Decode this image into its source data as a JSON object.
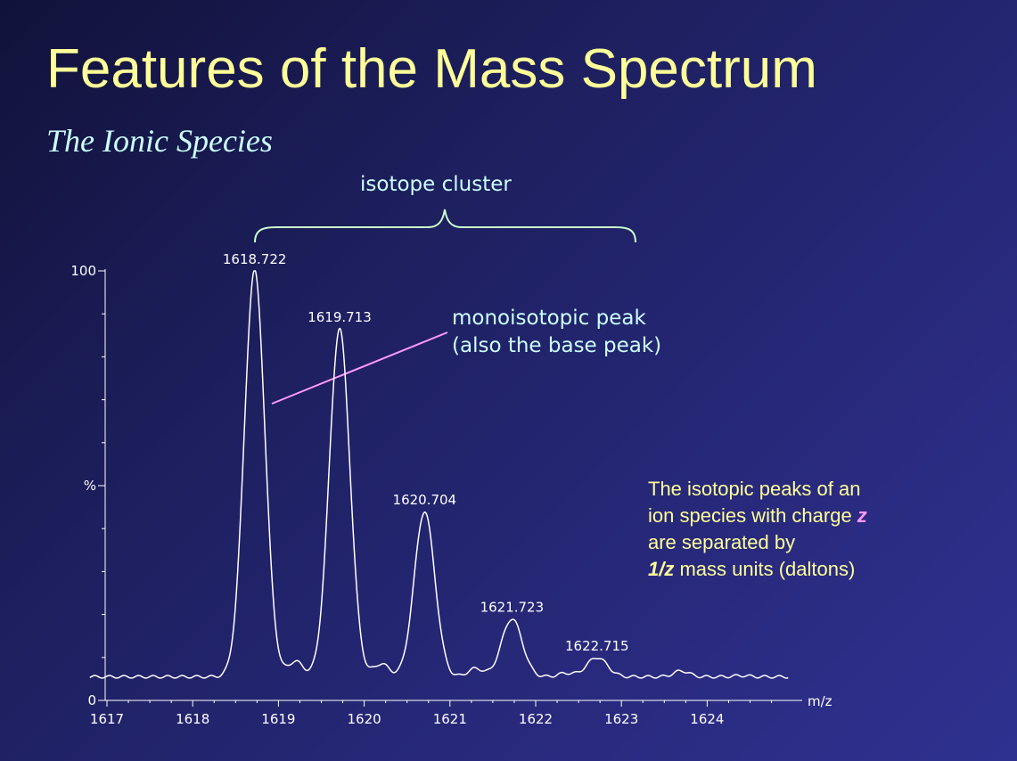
{
  "slide": {
    "title": "Features of the Mass Spectrum",
    "subtitle": "The Ionic Species",
    "cluster_label": "isotope cluster",
    "mono_label_line1": "monoisotopic  peak",
    "mono_label_line2": "(also the base peak)",
    "note": {
      "line1": "The isotopic peaks of an",
      "line2_pre": "ion species with charge ",
      "line2_z": "z",
      "line3": "are separated by",
      "line4_bold": "1/z",
      "line4_rest": " mass units (daltons)"
    }
  },
  "colors": {
    "title": "#ffff99",
    "subtitle": "#ccffff",
    "spectrum": "#ffffff",
    "pointer": "#ff99ff",
    "brace": "#ccffcc"
  },
  "chart_data": {
    "type": "line",
    "xlabel": "m/z",
    "ylabel": "%",
    "xlim": [
      1616.8,
      1624.95
    ],
    "ylim": [
      0,
      100
    ],
    "x_ticks": [
      "1617",
      "1618",
      "1619",
      "1620",
      "1621",
      "1622",
      "1623",
      "1624"
    ],
    "y_tick_labels": [
      {
        "value": 100,
        "label": "100"
      },
      {
        "value": 50,
        "label": "%"
      },
      {
        "value": 0,
        "label": "0"
      }
    ],
    "baseline": 5.5,
    "peaks": [
      {
        "mz": 1618.722,
        "label": "1618.722",
        "intensity": 100
      },
      {
        "mz": 1619.713,
        "label": "1619.713",
        "intensity": 86.5
      },
      {
        "mz": 1620.704,
        "label": "1620.704",
        "intensity": 44
      },
      {
        "mz": 1621.723,
        "label": "1621.723",
        "intensity": 19
      },
      {
        "mz": 1622.715,
        "label": "1622.715",
        "intensity": 10
      }
    ],
    "minor_peaks": [
      {
        "mz": 1619.2,
        "intensity": 12
      },
      {
        "mz": 1620.2,
        "intensity": 11
      },
      {
        "mz": 1621.3,
        "intensity": 9
      },
      {
        "mz": 1622.35,
        "intensity": 7
      },
      {
        "mz": 1623.7,
        "intensity": 8
      },
      {
        "mz": 1624.4,
        "intensity": 6
      }
    ]
  }
}
